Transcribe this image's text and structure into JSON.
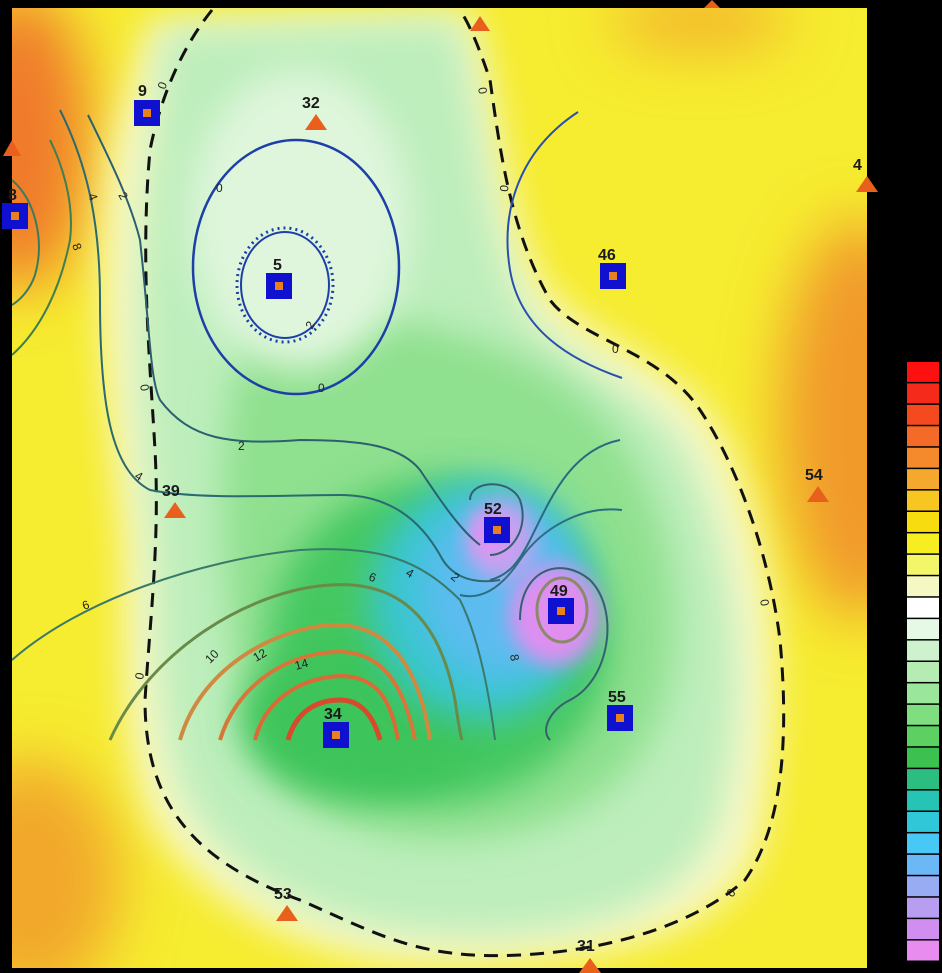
{
  "map": {
    "wells_square": [
      {
        "id": "9"
      },
      {
        "id": "8"
      },
      {
        "id": "5"
      },
      {
        "id": "46"
      },
      {
        "id": "52"
      },
      {
        "id": "49"
      },
      {
        "id": "55"
      },
      {
        "id": "34"
      }
    ],
    "wells_triangle": [
      {
        "id": "32"
      },
      {
        "id": "4"
      },
      {
        "id": "54"
      },
      {
        "id": "39"
      },
      {
        "id": "53"
      },
      {
        "id": "31"
      }
    ],
    "contour_labels": [
      {
        "text": "0"
      },
      {
        "text": "0"
      },
      {
        "text": "0"
      },
      {
        "text": "0"
      },
      {
        "text": "0"
      },
      {
        "text": "0"
      },
      {
        "text": "0"
      },
      {
        "text": "0"
      },
      {
        "text": "0"
      },
      {
        "text": "0"
      },
      {
        "text": "2"
      },
      {
        "text": "2"
      },
      {
        "text": "2"
      },
      {
        "text": "2"
      },
      {
        "text": "4"
      },
      {
        "text": "4"
      },
      {
        "text": "4"
      },
      {
        "text": "6"
      },
      {
        "text": "6"
      },
      {
        "text": "8"
      },
      {
        "text": "8"
      },
      {
        "text": "10"
      },
      {
        "text": "12"
      },
      {
        "text": "14"
      }
    ],
    "colors": {
      "square_well": "#1010d0",
      "triangle_well": "#e8601c",
      "zero_contour": "#111111"
    }
  },
  "colorbar": {
    "swatches": [
      "#ff1010",
      "#f62a1a",
      "#f54a20",
      "#f46a28",
      "#f58a2c",
      "#f5a82e",
      "#f7c620",
      "#f7dc10",
      "#f6ee20",
      "#f4f66a",
      "#f6f8c4",
      "#ffffff",
      "#e6f8e6",
      "#cdf2cd",
      "#b4ecb4",
      "#9ae69a",
      "#7ede80",
      "#5cd060",
      "#3cc050",
      "#2cbd80",
      "#26c4b4",
      "#30c8d8",
      "#48c8f4",
      "#6cb8f6",
      "#98acf4",
      "#b89ef0",
      "#d08ef0",
      "#e88cf0"
    ]
  }
}
